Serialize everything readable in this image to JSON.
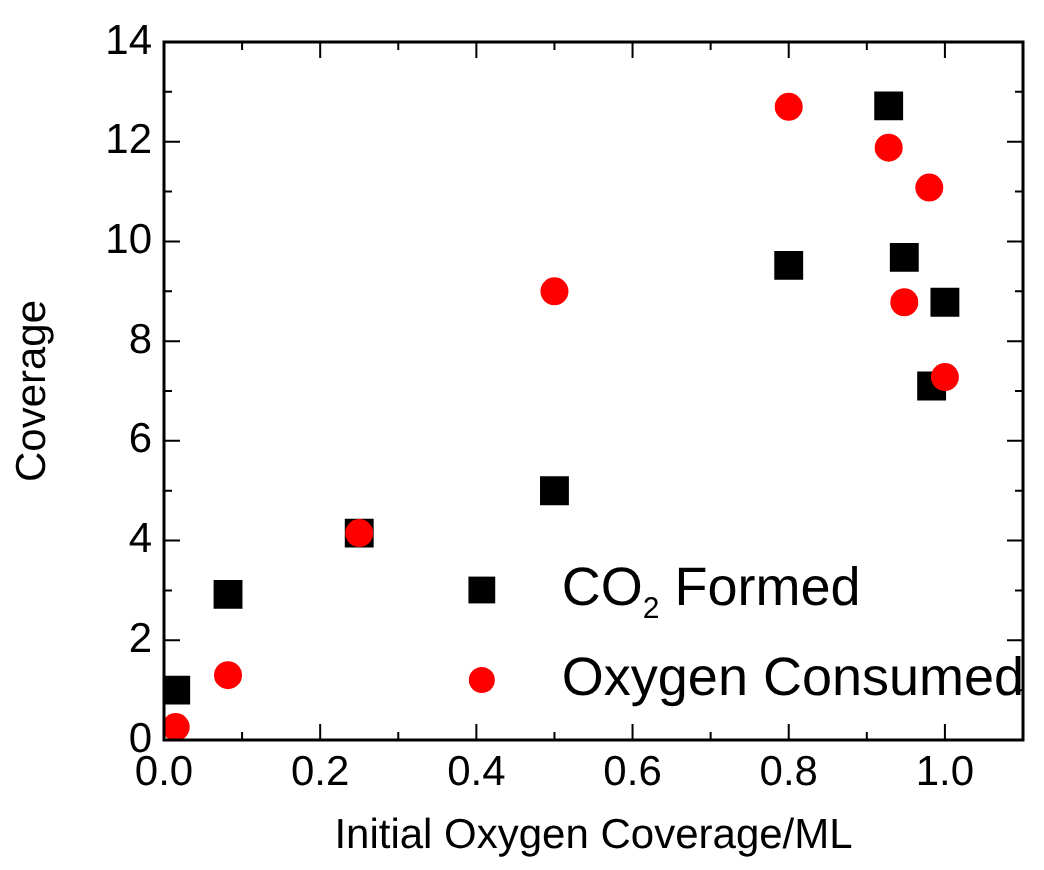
{
  "chart_data": {
    "type": "scatter",
    "xlabel": "Initial Oxygen Coverage/ML",
    "ylabel": "Coverage",
    "xlim": [
      0,
      1.1
    ],
    "xticks": [
      {
        "value": 0,
        "label": "0.0"
      },
      {
        "value": 0.2,
        "label": "0.2"
      },
      {
        "value": 0.4,
        "label": "0.4"
      },
      {
        "value": 0.6,
        "label": "0.6"
      },
      {
        "value": 0.8,
        "label": "0.8"
      },
      {
        "value": 1,
        "label": "1.0"
      }
    ],
    "ylim": [
      0,
      14
    ],
    "yticks": [
      0,
      2,
      4,
      6,
      8,
      10,
      12,
      14
    ],
    "grid": false,
    "legend": "bottom right",
    "series": [
      {
        "name": "CO$_{2}$ Formed",
        "color": "#000000",
        "marker": "square",
        "x": [
          0.015,
          0.082,
          0.25,
          0.5,
          0.8,
          0.928,
          0.948,
          0.983,
          1.0
        ],
        "values": [
          1.0,
          2.92,
          4.15,
          5.0,
          9.52,
          12.72,
          9.68,
          7.1,
          8.78
        ]
      },
      {
        "name": "Oxygen Consumed",
        "color": "#ff0000",
        "marker": "circle",
        "x": [
          0.015,
          0.082,
          0.25,
          0.5,
          0.8,
          0.928,
          0.948,
          0.98,
          1.0
        ],
        "values": [
          0.26,
          1.3,
          4.15,
          9.0,
          12.7,
          11.88,
          8.78,
          11.08,
          7.28
        ]
      }
    ]
  }
}
